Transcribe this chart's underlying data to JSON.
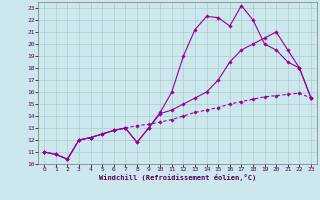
{
  "xlabel": "Windchill (Refroidissement éolien,°C)",
  "ylabel": "",
  "bg_color": "#cce8ec",
  "grid_color": "#aacccc",
  "line_color": "#990099",
  "xlim": [
    -0.5,
    23.5
  ],
  "ylim": [
    10,
    23.5
  ],
  "xticks": [
    0,
    1,
    2,
    3,
    4,
    5,
    6,
    7,
    8,
    9,
    10,
    11,
    12,
    13,
    14,
    15,
    16,
    17,
    18,
    19,
    20,
    21,
    22,
    23
  ],
  "yticks": [
    10,
    11,
    12,
    13,
    14,
    15,
    16,
    17,
    18,
    19,
    20,
    21,
    22,
    23
  ],
  "line1_x": [
    0,
    1,
    2,
    3,
    4,
    5,
    6,
    7,
    8,
    9,
    10,
    11,
    12,
    13,
    14,
    15,
    16,
    17,
    18,
    19,
    20,
    21,
    22,
    23
  ],
  "line1_y": [
    11.0,
    10.8,
    10.4,
    12.0,
    12.2,
    12.5,
    12.8,
    13.0,
    11.8,
    13.0,
    14.3,
    16.0,
    19.0,
    21.2,
    22.3,
    22.2,
    21.5,
    23.2,
    22.0,
    20.0,
    19.5,
    18.5,
    18.0,
    15.5
  ],
  "line2_x": [
    0,
    1,
    2,
    3,
    4,
    5,
    6,
    7,
    8,
    9,
    10,
    11,
    12,
    13,
    14,
    15,
    16,
    17,
    18,
    19,
    20,
    21,
    22,
    23
  ],
  "line2_y": [
    11.0,
    10.8,
    10.4,
    12.0,
    12.2,
    12.5,
    12.8,
    13.0,
    13.2,
    13.3,
    13.5,
    13.7,
    14.0,
    14.3,
    14.5,
    14.7,
    15.0,
    15.2,
    15.4,
    15.6,
    15.7,
    15.8,
    15.9,
    15.5
  ],
  "line3_x": [
    0,
    1,
    2,
    3,
    4,
    5,
    6,
    7,
    8,
    9,
    10,
    11,
    12,
    13,
    14,
    15,
    16,
    17,
    18,
    19,
    20,
    21,
    22,
    23
  ],
  "line3_y": [
    11.0,
    10.8,
    10.4,
    12.0,
    12.2,
    12.5,
    12.8,
    13.0,
    11.8,
    13.0,
    14.2,
    14.5,
    15.0,
    15.5,
    16.0,
    17.0,
    18.5,
    19.5,
    20.0,
    20.5,
    21.0,
    19.5,
    18.0,
    15.5
  ]
}
